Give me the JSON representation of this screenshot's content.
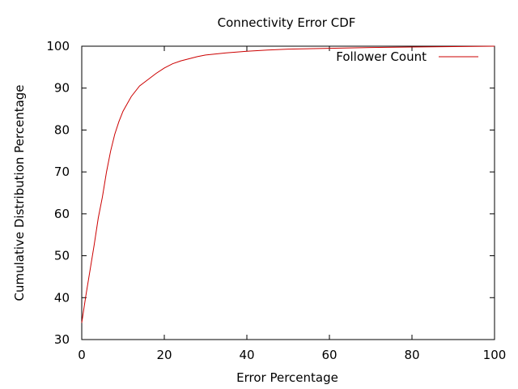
{
  "chart_data": {
    "type": "line",
    "title": "Connectivity Error CDF",
    "xlabel": "Error Percentage",
    "ylabel": "Cumulative Distribution Percentage",
    "xlim": [
      0,
      100
    ],
    "ylim": [
      30,
      100
    ],
    "x_ticks": [
      "0",
      "20",
      "40",
      "60",
      "80",
      "100"
    ],
    "y_ticks": [
      "30",
      "40",
      "50",
      "60",
      "70",
      "80",
      "90",
      "100"
    ],
    "grid": false,
    "legend_position": "top-right",
    "colors": {
      "series": "#cc0000",
      "frame": "#000000"
    },
    "series": [
      {
        "name": "Follower Count",
        "x": [
          0,
          1,
          2,
          3,
          4,
          5,
          6,
          7,
          8,
          9,
          10,
          12,
          14,
          16,
          18,
          20,
          22,
          24,
          26,
          28,
          30,
          35,
          40,
          45,
          50,
          60,
          70,
          80,
          90,
          100
        ],
        "y": [
          34,
          40.5,
          46.5,
          52.5,
          59,
          64,
          70,
          75,
          79,
          82,
          84.5,
          88,
          90.5,
          92,
          93.5,
          94.8,
          95.8,
          96.5,
          97,
          97.5,
          97.9,
          98.4,
          98.8,
          99.1,
          99.3,
          99.5,
          99.7,
          99.8,
          99.9,
          100
        ]
      }
    ]
  }
}
